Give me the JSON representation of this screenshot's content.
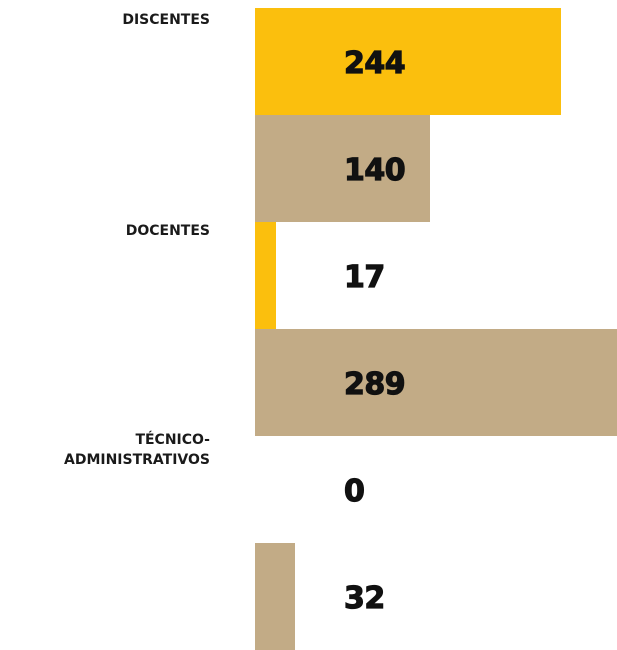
{
  "chart_data": {
    "type": "bar",
    "orientation": "horizontal",
    "categories": [
      "DISCENTES",
      "DOCENTES",
      "TÉCNICO-\nADMINISTRATIVOS"
    ],
    "series": [
      {
        "values": [
          244,
          17,
          0
        ]
      },
      {
        "values": [
          140,
          289,
          32
        ]
      }
    ],
    "xlim": [
      0,
      289
    ],
    "grid": false,
    "legend": "none"
  },
  "colors": {
    "series_1": "#fbbf0d",
    "series_2": "#c2ab86",
    "label_text": "#1a1a1a",
    "value_text": "#111111"
  }
}
